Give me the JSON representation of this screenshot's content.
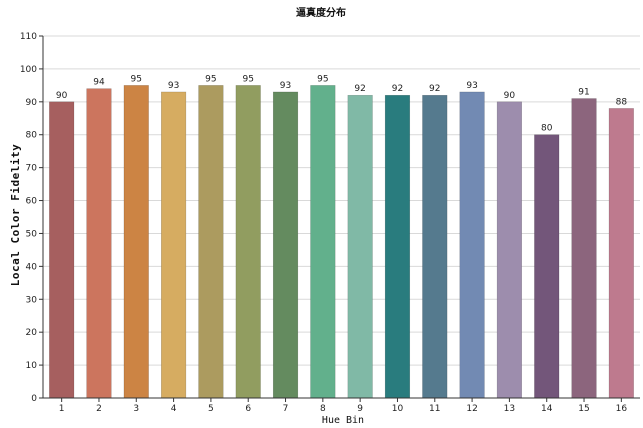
{
  "chart_data": {
    "type": "bar",
    "title": "逼真度分布",
    "xlabel": "Hue Bin",
    "ylabel": "Local Color Fidelity",
    "categories": [
      "1",
      "2",
      "3",
      "4",
      "5",
      "6",
      "7",
      "8",
      "9",
      "10",
      "11",
      "12",
      "13",
      "14",
      "15",
      "16"
    ],
    "values": [
      90,
      94,
      95,
      93,
      95,
      95,
      93,
      95,
      92,
      92,
      92,
      93,
      90,
      80,
      91,
      88
    ],
    "data_labels": [
      "90",
      "94",
      "95",
      "93",
      "95",
      "95",
      "93",
      "95",
      "92",
      "92",
      "92",
      "93",
      "90",
      "80",
      "91",
      "88"
    ],
    "ylim": [
      0,
      110
    ],
    "yticks": [
      0,
      10,
      20,
      30,
      40,
      50,
      60,
      70,
      80,
      90,
      100,
      110
    ],
    "grid": true,
    "legend": "none",
    "colors": [
      "#a65f5f",
      "#cc755e",
      "#cc8444",
      "#d6ac61",
      "#ac9b5f",
      "#919d60",
      "#648b5f",
      "#62b08c",
      "#80b9a6",
      "#297c7e",
      "#557a8e",
      "#728ab3",
      "#9d8dad",
      "#73567a",
      "#8c657d",
      "#be7a8e"
    ]
  }
}
